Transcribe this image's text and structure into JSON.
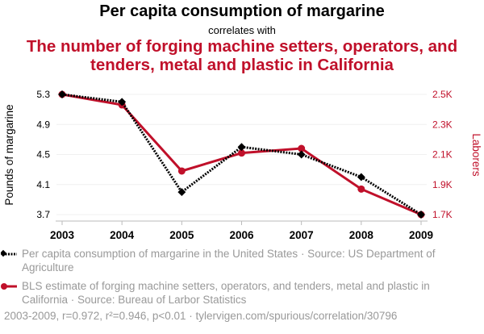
{
  "chart_data": {
    "type": "line",
    "title": "Per capita consumption of margarine",
    "subtitle": "correlates with",
    "title2": "The number of forging machine setters, operators, and tenders, metal and plastic in California",
    "x": [
      "2003",
      "2004",
      "2005",
      "2006",
      "2007",
      "2008",
      "2009"
    ],
    "ylabel": "Pounds of margarine",
    "y2label": "Laborers",
    "ylim": [
      3.7,
      5.3
    ],
    "y2lim": [
      1700,
      2500
    ],
    "yticks": [
      "5.3",
      "4.9",
      "4.5",
      "4.1",
      "3.7"
    ],
    "y2ticks": [
      "2.5K",
      "2.3K",
      "2.1K",
      "1.9K",
      "1.7K"
    ],
    "grid": true,
    "series": [
      {
        "name": "Per capita consumption of margarine in the United States · Source: US Department of Agriculture",
        "axis": "left",
        "color": "#000000",
        "values": [
          5.3,
          5.2,
          4.0,
          4.6,
          4.5,
          4.2,
          3.7
        ]
      },
      {
        "name": "BLS estimate of forging machine setters, operators, and tenders, metal and plastic in California · Source: Bureau of Larbor Statistics",
        "axis": "right",
        "color": "#c0102a",
        "values": [
          2500,
          2430,
          1990,
          2110,
          2140,
          1870,
          1700
        ]
      }
    ],
    "footer": "2003-2009, r=0.972, r²=0.946, p<0.01 · tylervigen.com/spurious/correlation/30796"
  }
}
